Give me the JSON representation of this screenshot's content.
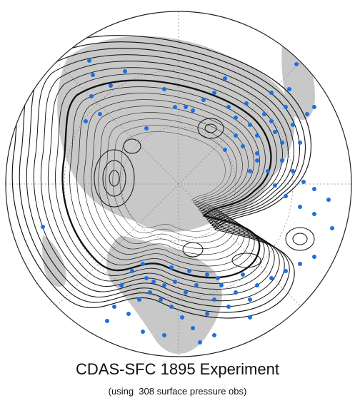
{
  "header": {
    "title": "CDAS-SFC 1895 Experiment",
    "subtitle": "(using  308 surface pressure obs)"
  }
}
